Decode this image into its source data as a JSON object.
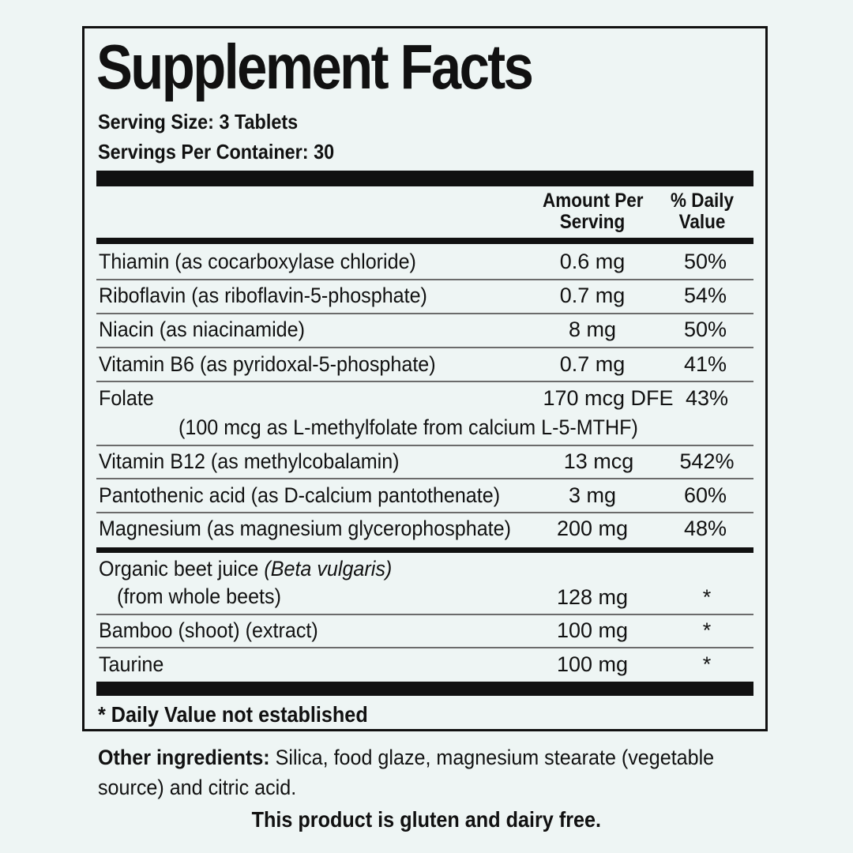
{
  "title": "Supplement Facts",
  "serving_size": "Serving Size: 3 Tablets",
  "servings_per_container": "Servings Per Container: 30",
  "header": {
    "amount_line1": "Amount Per",
    "amount_line2": "Serving",
    "dv_line1": "% Daily",
    "dv_line2": "Value"
  },
  "nutrients": [
    {
      "name": "Thiamin (as cocarboxylase chloride)",
      "amount": "0.6 mg",
      "dv": "50%"
    },
    {
      "name": "Riboflavin (as riboflavin-5-phosphate)",
      "amount": "0.7 mg",
      "dv": "54%"
    },
    {
      "name": "Niacin (as niacinamide)",
      "amount": "8 mg",
      "dv": "50%"
    },
    {
      "name": "Vitamin B6 (as pyridoxal-5-phosphate)",
      "amount": "0.7 mg",
      "dv": "41%"
    },
    {
      "name": "Folate",
      "amount": "170 mcg DFE",
      "dv": "43%",
      "note": "(100 mcg as L-methylfolate from calcium L-5-MTHF)"
    },
    {
      "name": "Vitamin B12 (as methylcobalamin)",
      "amount": "13 mcg",
      "dv": "542%"
    },
    {
      "name": "Pantothenic acid (as D-calcium pantothenate)",
      "amount": "3 mg",
      "dv": "60%"
    },
    {
      "name": "Magnesium (as magnesium glycerophosphate)",
      "amount": "200 mg",
      "dv": "48%"
    }
  ],
  "other_items": [
    {
      "name": "Organic beet juice",
      "name_italic": "(Beta vulgaris)",
      "sub": "(from whole beets)",
      "amount": "128 mg",
      "dv": "*"
    },
    {
      "name": "Bamboo (shoot) (extract)",
      "amount": "100 mg",
      "dv": "*"
    },
    {
      "name": "Taurine",
      "amount": "100 mg",
      "dv": "*"
    }
  ],
  "footnote": "* Daily Value not established",
  "other_ingredients_label": "Other ingredients:",
  "other_ingredients_text": " Silica, food glaze, magnesium stearate (vegetable source) and citric acid.",
  "gluten_statement": "This product is gluten and dairy free."
}
